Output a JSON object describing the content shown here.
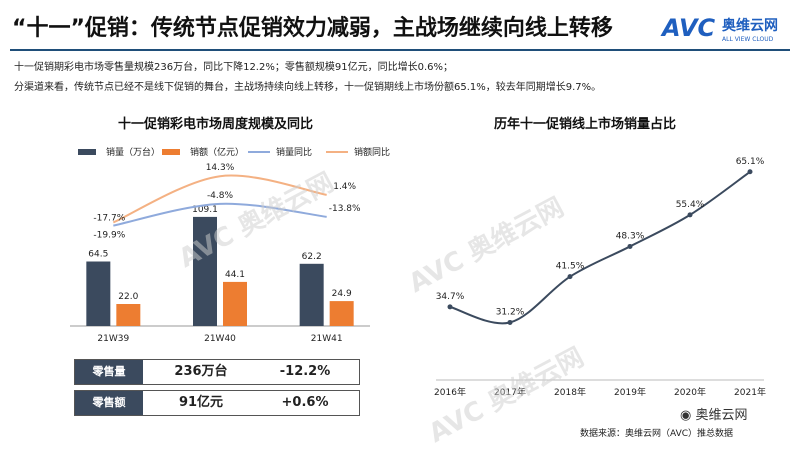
{
  "header": {
    "title": "“十一”促销：传统节点促销效力减弱，主战场继续向线上转移",
    "logo_text": "AVC",
    "logo_cn": "奥维云网",
    "logo_en": "ALL VIEW CLOUD"
  },
  "summary": {
    "line1": "十一促销期彩电市场零售量规模236万台，同比下降12.2%；零售额规模91亿元，同比增长0.6%；",
    "line2": "分渠道来看，传统节点已经不是线下促销的舞台，主战场持续向线上转移，十一促销期线上市场份额65.1%，较去年同期增长9.7%。"
  },
  "left_chart_title": "十一促销彩电市场周度规模及同比",
  "right_chart_title": "历年十一促销线上市场销量占比",
  "legend": [
    "销量（万台）",
    "销额（亿元）",
    "销量同比",
    "销额同比"
  ],
  "colors": {
    "volume": "#3b4a5e",
    "revenue": "#ed7d31",
    "volume_yoy": "#8faadc",
    "revenue_yoy": "#f4b183",
    "line": "#3b4a5e",
    "rule": "#1f4e79"
  },
  "kpi": [
    {
      "label": "零售量",
      "value": "236万台",
      "change": "-12.2%"
    },
    {
      "label": "零售额",
      "value": "91亿元",
      "change": "+0.6%"
    }
  ],
  "watermark": "AVC 奥维云网",
  "footer": {
    "wechat": "奥维云网",
    "source": "数据来源：奥维云网（AVC）推总数据"
  },
  "chart_data": [
    {
      "type": "bar",
      "title": "十一促销彩电市场周度规模及同比",
      "categories": [
        "21W39",
        "21W40",
        "21W41"
      ],
      "series": [
        {
          "name": "销量（万台）",
          "kind": "bar",
          "values": [
            64.5,
            109.1,
            62.2
          ],
          "labels": [
            "64.5",
            "109.1",
            "62.2"
          ]
        },
        {
          "name": "销额（亿元）",
          "kind": "bar",
          "values": [
            22.0,
            44.1,
            24.9
          ],
          "labels": [
            "22.0",
            "44.1",
            "24.9"
          ]
        },
        {
          "name": "销量同比",
          "kind": "line",
          "values": [
            -19.9,
            -4.8,
            -13.8
          ],
          "labels": [
            "-19.9%",
            "-4.8%",
            "-13.8%"
          ]
        },
        {
          "name": "销额同比",
          "kind": "line",
          "values": [
            -17.7,
            14.3,
            1.4
          ],
          "labels": [
            "-17.7%",
            "14.3%",
            "1.4%"
          ]
        }
      ],
      "legend_position": "top",
      "grid": false
    },
    {
      "type": "line",
      "title": "历年十一促销线上市场销量占比",
      "x": [
        "2016年",
        "2017年",
        "2018年",
        "2019年",
        "2020年",
        "2021年"
      ],
      "values": [
        34.7,
        31.2,
        41.5,
        48.3,
        55.4,
        65.1
      ],
      "labels": [
        "34.7%",
        "31.2%",
        "41.5%",
        "48.3%",
        "55.4%",
        "65.1%"
      ],
      "grid": false
    }
  ]
}
